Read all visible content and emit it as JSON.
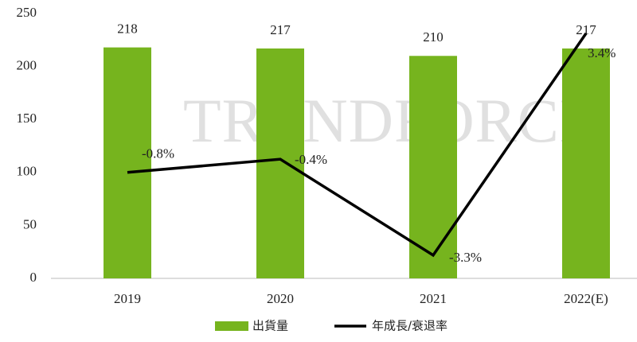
{
  "chart_data": {
    "type": "bar",
    "watermark": "TRENDFORCE",
    "categories": [
      "2019",
      "2020",
      "2021",
      "2022(E)"
    ],
    "series": [
      {
        "name": "出貨量",
        "color": "#76b41e",
        "values": [
          218,
          217,
          210,
          217
        ]
      },
      {
        "name": "年成長/衰退率",
        "color": "#000000",
        "type": "line",
        "axis": "y2",
        "values": [
          -0.8,
          -0.4,
          -3.3,
          3.4
        ],
        "value_labels": [
          "-0.8%",
          "-0.4%",
          "-3.3%",
          "3.4%"
        ]
      }
    ],
    "ylim": [
      0,
      250
    ],
    "yticks": [
      0,
      50,
      100,
      150,
      200,
      250
    ],
    "y2lim": [
      -4,
      4
    ],
    "legend": "bottom"
  }
}
